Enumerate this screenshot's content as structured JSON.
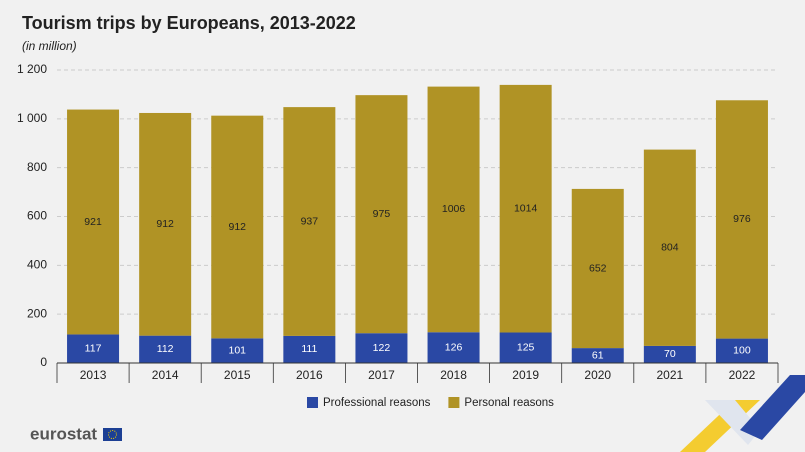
{
  "chart_data": {
    "type": "stacked-bar",
    "title": "Tourism trips by Europeans, 2013-2022",
    "subtitle": "(in million)",
    "categories": [
      "2013",
      "2014",
      "2015",
      "2016",
      "2017",
      "2018",
      "2019",
      "2020",
      "2021",
      "2022"
    ],
    "series": [
      {
        "name": "Professional reasons",
        "color": "#2a48a4",
        "values": [
          117,
          112,
          101,
          111,
          122,
          126,
          125,
          61,
          70,
          100
        ]
      },
      {
        "name": "Personal reasons",
        "color": "#b09325",
        "values": [
          921,
          912,
          912,
          937,
          975,
          1006,
          1014,
          652,
          804,
          976
        ]
      }
    ],
    "ylim": [
      0,
      1200
    ],
    "yticks": [
      0,
      200,
      400,
      600,
      800,
      {
        "value": 1000,
        "label": "1 000"
      },
      {
        "value": 1200,
        "label": "1 200"
      }
    ],
    "grid": true,
    "legend": "bottom"
  },
  "logo": "eurostat"
}
